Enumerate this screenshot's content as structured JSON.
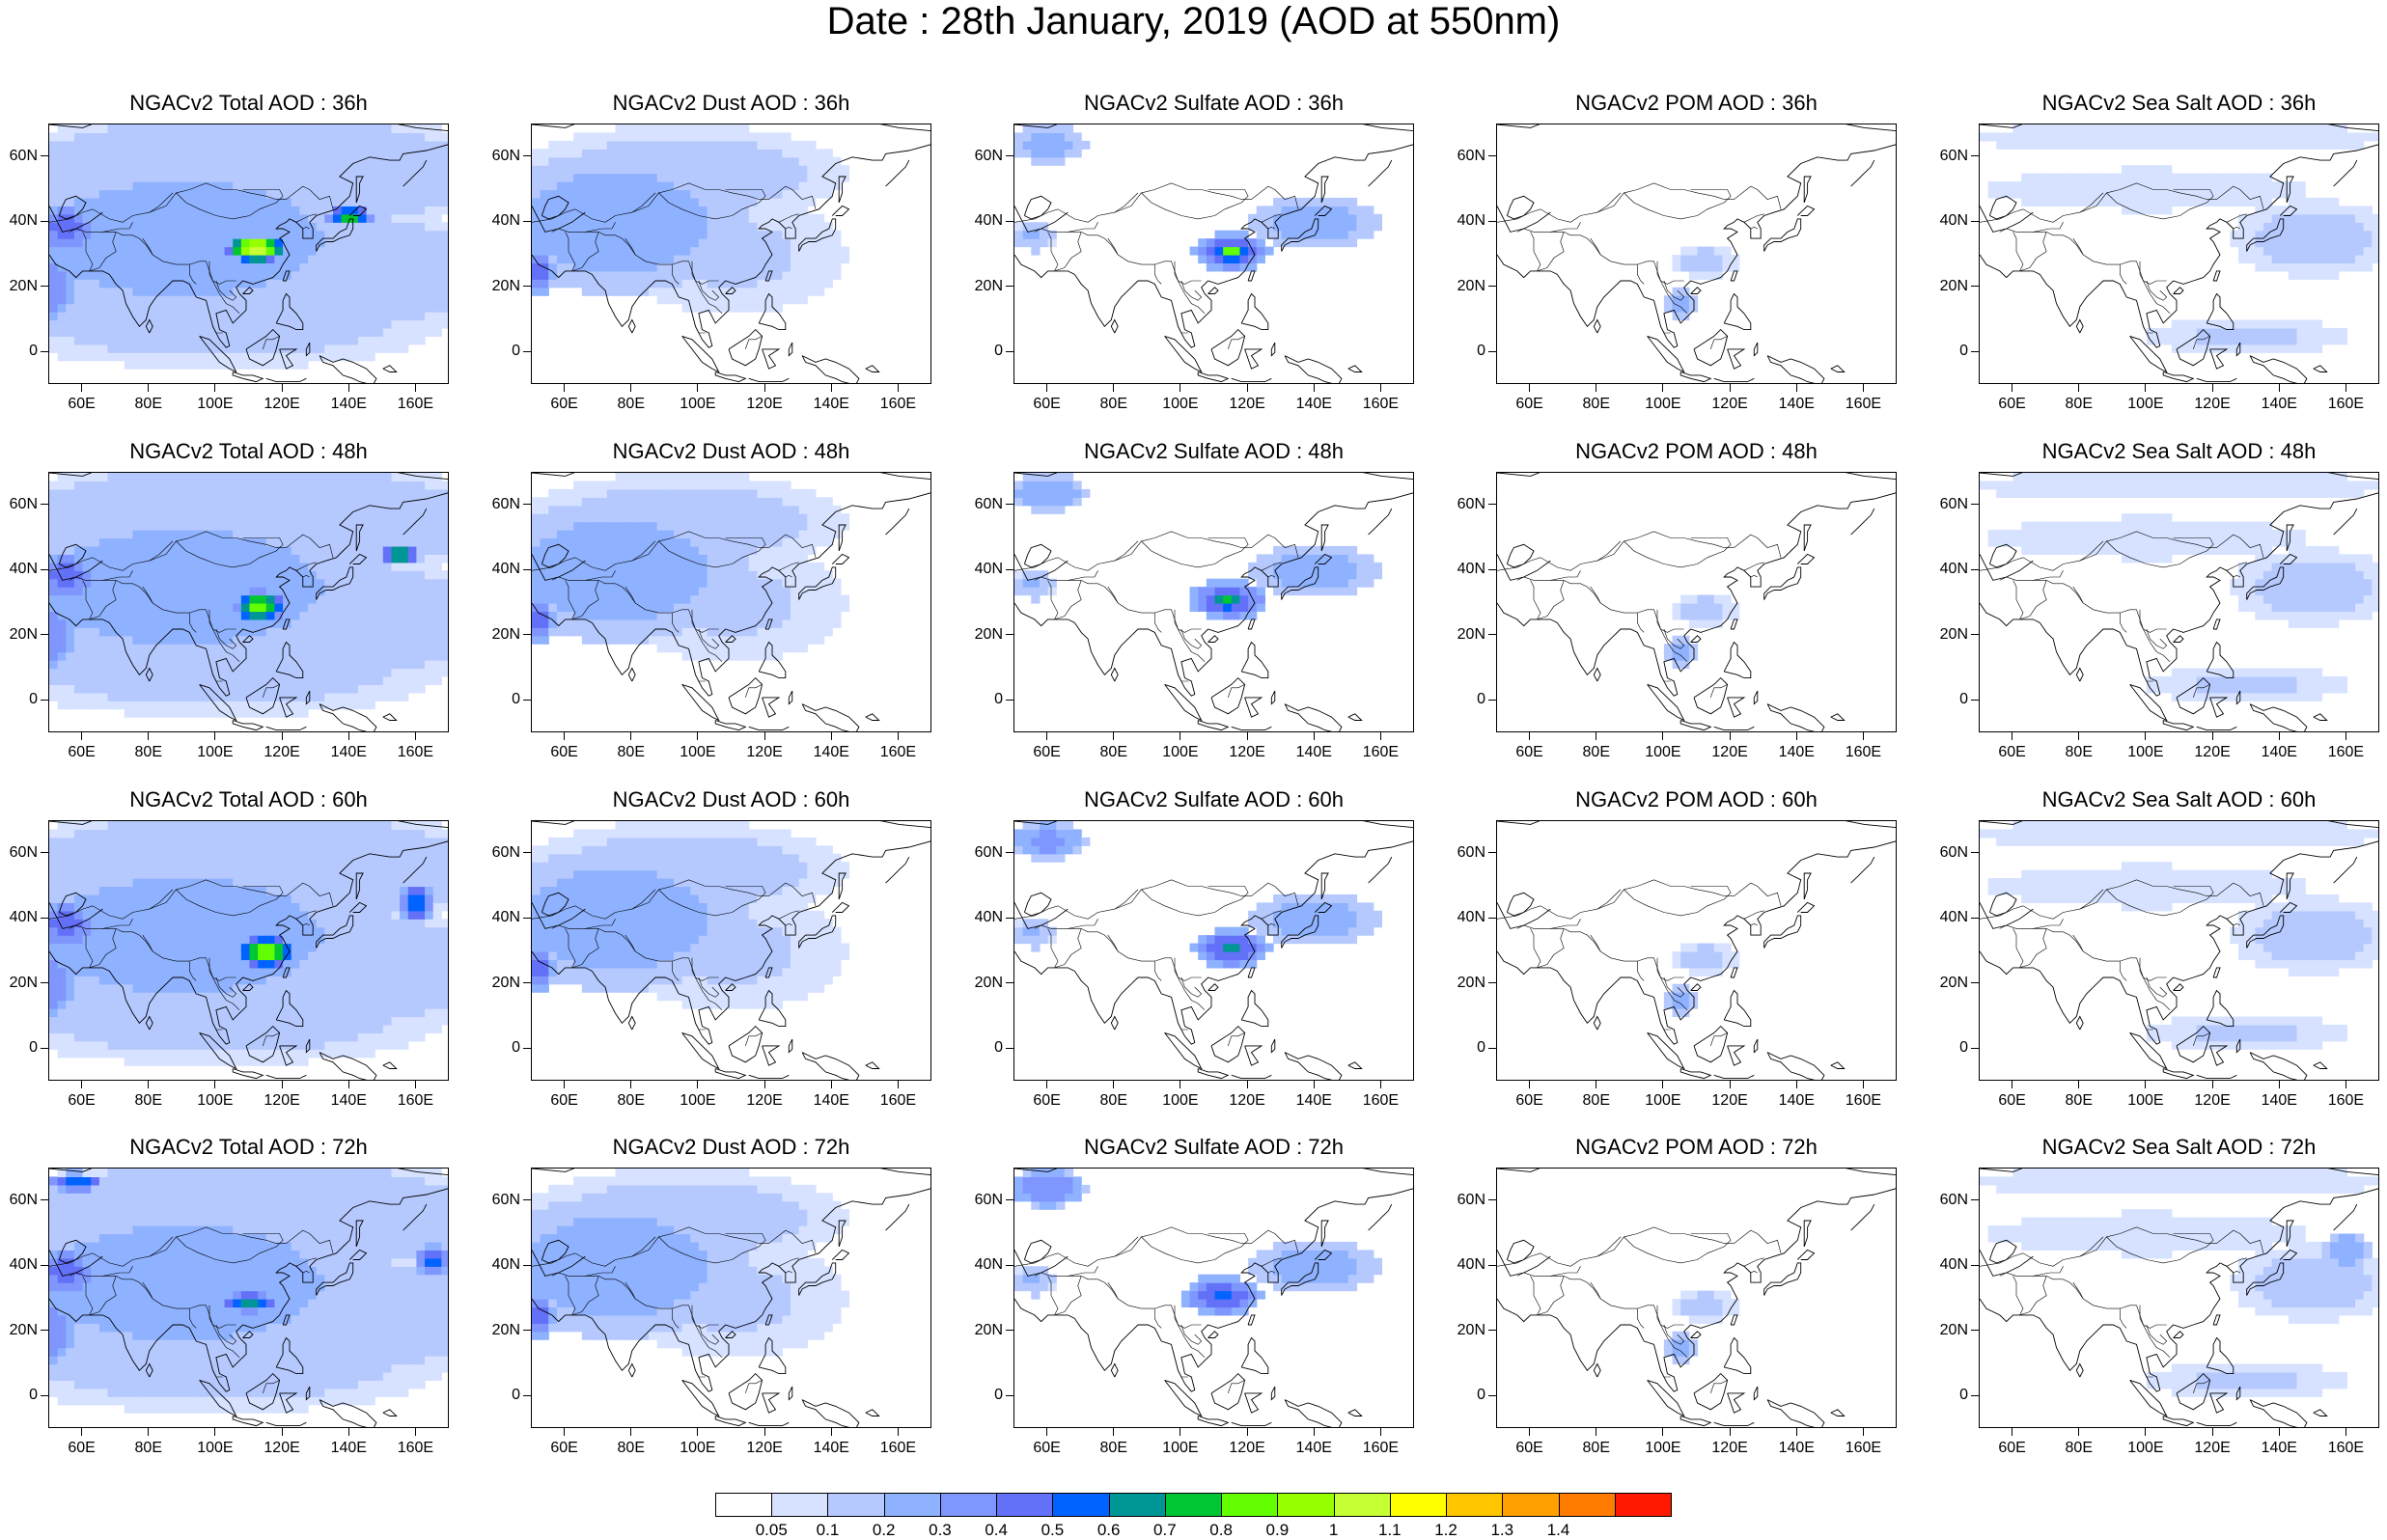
{
  "title": "Date : 28th January, 2019 (AOD at 550nm)",
  "panels": [
    [
      {
        "title": "NGACv2 Total AOD : 36h",
        "species": "total"
      },
      {
        "title": "NGACv2 Dust AOD : 36h",
        "species": "dust"
      },
      {
        "title": "NGACv2 Sulfate AOD : 36h",
        "species": "sulfate"
      },
      {
        "title": "NGACv2 POM AOD : 36h",
        "species": "pom"
      },
      {
        "title": "NGACv2 Sea Salt AOD : 36h",
        "species": "seasalt"
      }
    ],
    [
      {
        "title": "NGACv2 Total AOD : 48h",
        "species": "total"
      },
      {
        "title": "NGACv2 Dust AOD : 48h",
        "species": "dust"
      },
      {
        "title": "NGACv2 Sulfate AOD : 48h",
        "species": "sulfate"
      },
      {
        "title": "NGACv2 POM AOD : 48h",
        "species": "pom"
      },
      {
        "title": "NGACv2 Sea Salt AOD : 48h",
        "species": "seasalt"
      }
    ],
    [
      {
        "title": "NGACv2 Total AOD : 60h",
        "species": "total"
      },
      {
        "title": "NGACv2 Dust AOD : 60h",
        "species": "dust"
      },
      {
        "title": "NGACv2 Sulfate AOD : 60h",
        "species": "sulfate"
      },
      {
        "title": "NGACv2 POM AOD : 60h",
        "species": "pom"
      },
      {
        "title": "NGACv2 Sea Salt AOD : 60h",
        "species": "seasalt"
      }
    ],
    [
      {
        "title": "NGACv2 Total AOD : 72h",
        "species": "total"
      },
      {
        "title": "NGACv2 Dust AOD : 72h",
        "species": "dust"
      },
      {
        "title": "NGACv2 Sulfate AOD : 72h",
        "species": "sulfate"
      },
      {
        "title": "NGACv2 POM AOD : 72h",
        "species": "pom"
      },
      {
        "title": "NGACv2 Sea Salt  AOD : 72h",
        "species": "seasalt"
      }
    ]
  ],
  "map": {
    "lon_range": [
      50,
      170
    ],
    "lat_range": [
      -10,
      70
    ],
    "x_ticks": [
      60,
      80,
      100,
      120,
      140,
      160
    ],
    "x_tick_labels": [
      "60E",
      "80E",
      "100E",
      "120E",
      "140E",
      "160E"
    ],
    "y_ticks": [
      0,
      20,
      40,
      60
    ],
    "y_tick_labels": [
      "0",
      "20N",
      "40N",
      "60N"
    ]
  },
  "colorbar": {
    "labels": [
      "0.05",
      "0.1",
      "0.2",
      "0.3",
      "0.4",
      "0.5",
      "0.6",
      "0.7",
      "0.8",
      "0.9",
      "1",
      "1.1",
      "1.2",
      "1.3",
      "1.4"
    ],
    "colors": [
      "#ffffff",
      "#d6e2ff",
      "#b5c9ff",
      "#8eb2ff",
      "#7f96ff",
      "#6370f8",
      "#0063ff",
      "#009696",
      "#00c633",
      "#63ff00",
      "#96ff00",
      "#c6ff33",
      "#ffff00",
      "#ffc600",
      "#ffa000",
      "#ff7c00",
      "#ff1900"
    ]
  },
  "coast_color": "#000000"
}
